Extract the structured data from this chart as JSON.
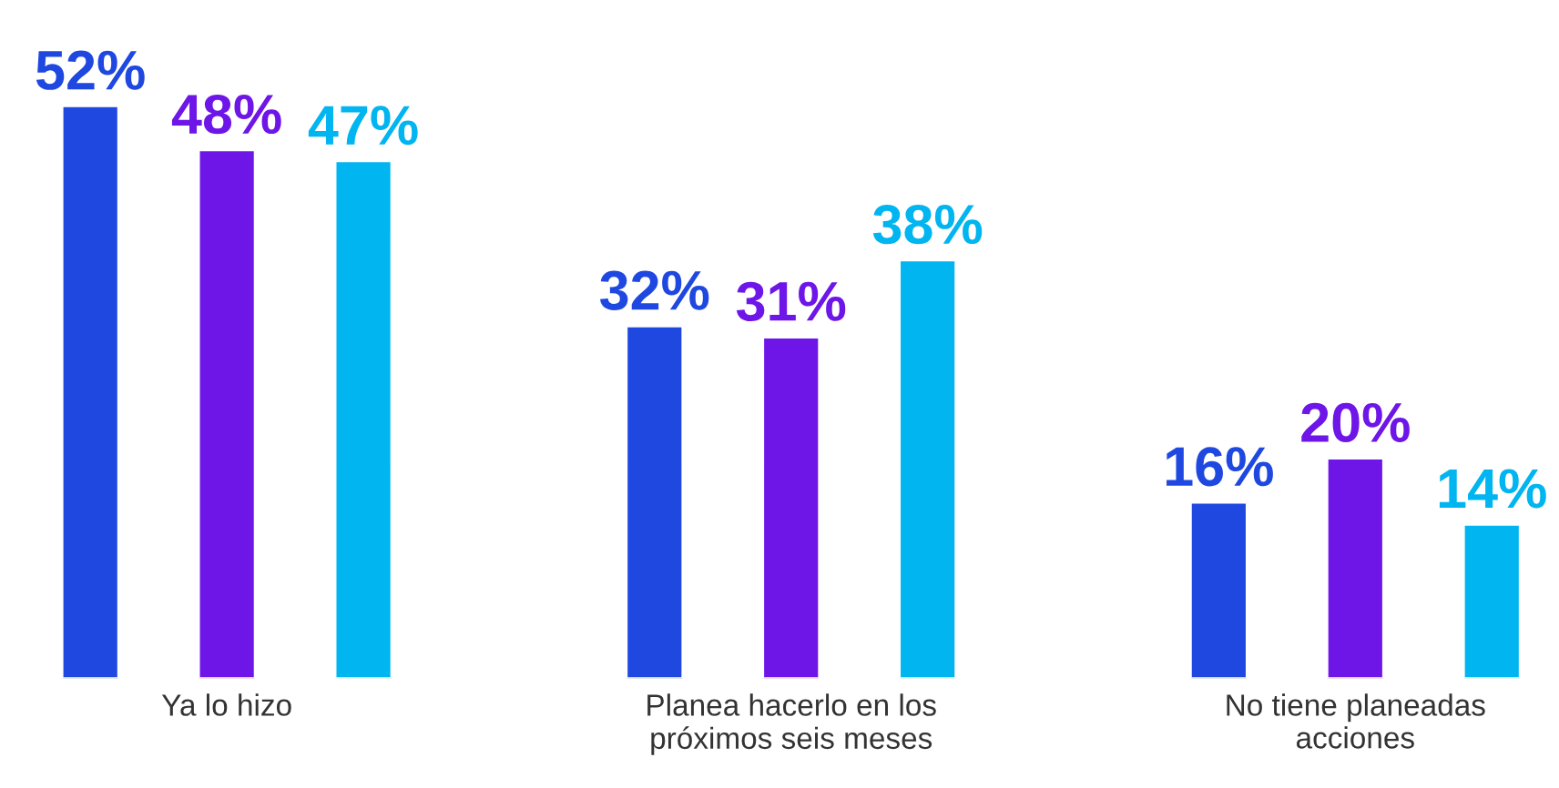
{
  "chart_data": {
    "type": "bar",
    "categories": [
      "Ya lo hizo",
      "Planea hacerlo en los\npróximos seis meses",
      "No tiene planeadas\nacciones"
    ],
    "series": [
      {
        "color": "#1f48e0",
        "values": [
          52,
          32,
          16
        ],
        "value_labels": [
          "52%",
          "32%",
          "16%"
        ]
      },
      {
        "color": "#6e16e8",
        "values": [
          48,
          31,
          20
        ],
        "value_labels": [
          "48%",
          "31%",
          "20%"
        ]
      },
      {
        "color": "#00b5f0",
        "values": [
          47,
          38,
          14
        ],
        "value_labels": [
          "47%",
          "38%",
          "14%"
        ]
      }
    ],
    "grid": false,
    "legend": false,
    "tick_labels": "x"
  }
}
